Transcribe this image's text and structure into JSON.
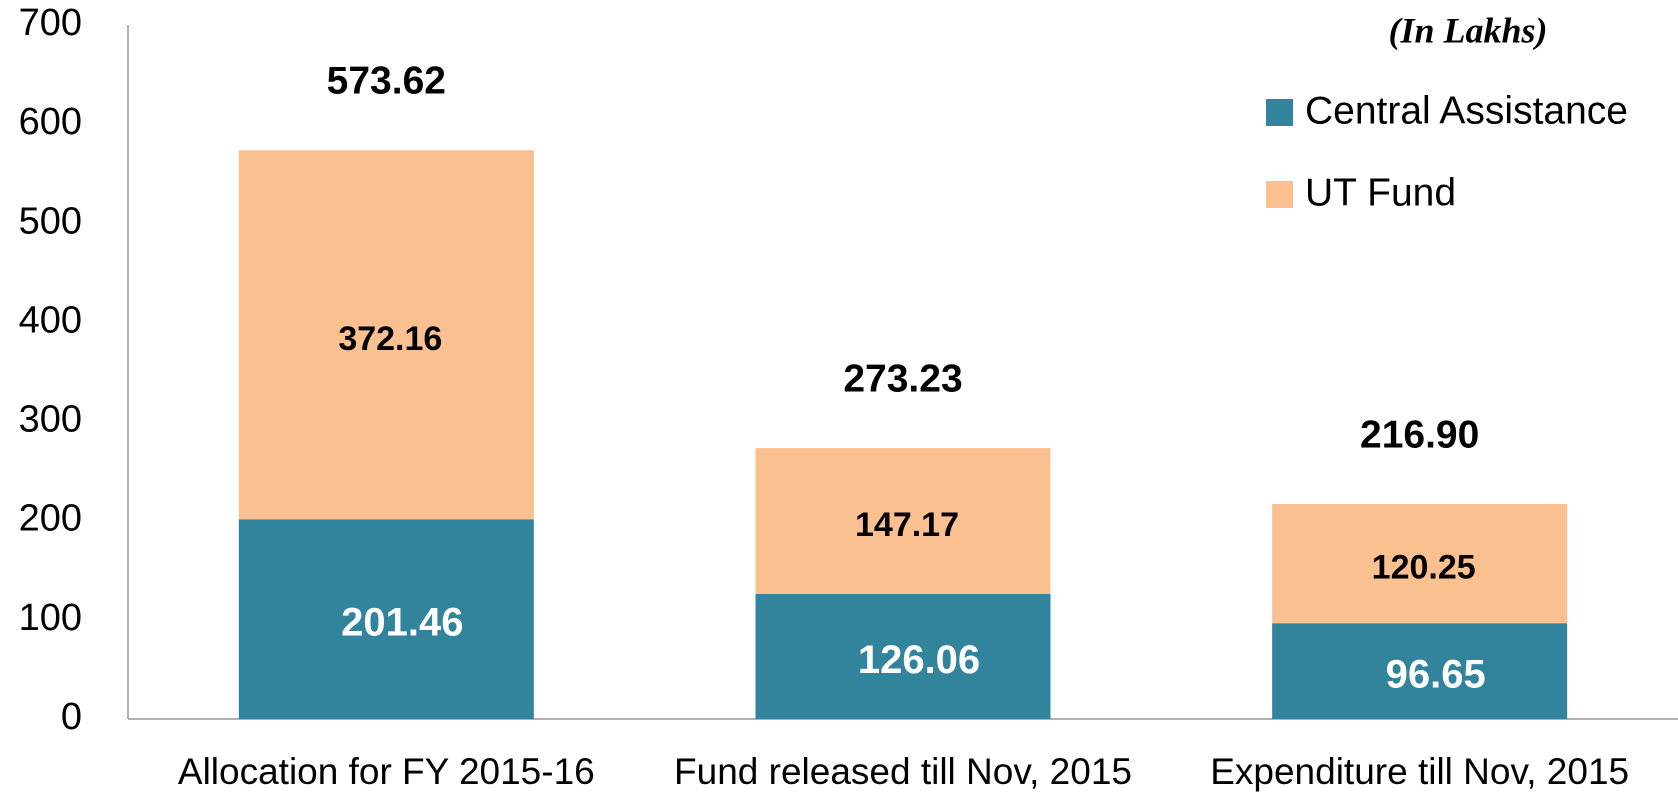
{
  "chart_data": {
    "type": "stacked_bar",
    "annotation": "(In Lakhs)",
    "categories": [
      "Allocation for FY 2015-16",
      "Fund released till Nov, 2015",
      "Expenditure till Nov, 2015"
    ],
    "series": [
      {
        "name": "Central Assistance",
        "color": "#31849b",
        "values": [
          201.46,
          126.06,
          96.65
        ]
      },
      {
        "name": "UT Fund",
        "color": "#fac090",
        "values": [
          372.16,
          147.17,
          120.25
        ]
      }
    ],
    "total_labels": [
      "573.62",
      "273.23",
      "216.90"
    ],
    "ylim": [
      0,
      700
    ],
    "yticks": [
      0,
      100,
      200,
      300,
      400,
      500,
      600,
      700
    ],
    "grid": false
  }
}
